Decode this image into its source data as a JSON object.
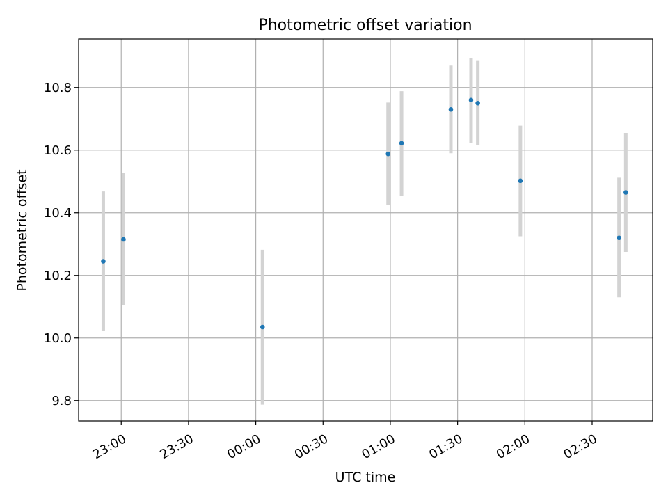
{
  "chart_data": {
    "type": "scatter",
    "title": "Photometric offset variation",
    "xlabel": "UTC time",
    "ylabel": "Photometric offset",
    "x_tick_labels": [
      "23:00",
      "23:30",
      "00:00",
      "00:30",
      "01:00",
      "01:30",
      "02:00",
      "02:30"
    ],
    "x_tick_times": [
      "2000-01-01T23:00",
      "2000-01-01T23:30",
      "2000-01-02T00:00",
      "2000-01-02T00:30",
      "2000-01-02T01:00",
      "2000-01-02T01:30",
      "2000-01-02T02:00",
      "2000-01-02T02:30"
    ],
    "xlim": [
      "2000-01-01T22:41",
      "2000-01-02T02:57"
    ],
    "ylim": [
      9.735,
      10.955
    ],
    "y_ticks": [
      9.8,
      10.0,
      10.2,
      10.4,
      10.6,
      10.8
    ],
    "y_tick_labels": [
      "9.8",
      "10.0",
      "10.2",
      "10.4",
      "10.6",
      "10.8"
    ],
    "grid": true,
    "colors": {
      "marker": "#1f77b4",
      "errorbar": "#d3d3d3",
      "grid": "#b0b0b0",
      "axes": "#000000"
    },
    "points": [
      {
        "x": "2000-01-01T22:52",
        "y": 10.245,
        "err_low": 10.022,
        "err_high": 10.468
      },
      {
        "x": "2000-01-01T23:01",
        "y": 10.315,
        "err_low": 10.105,
        "err_high": 10.527
      },
      {
        "x": "2000-01-02T00:03",
        "y": 10.035,
        "err_low": 9.787,
        "err_high": 10.282
      },
      {
        "x": "2000-01-02T00:59",
        "y": 10.588,
        "err_low": 10.425,
        "err_high": 10.752
      },
      {
        "x": "2000-01-02T01:05",
        "y": 10.622,
        "err_low": 10.455,
        "err_high": 10.788
      },
      {
        "x": "2000-01-02T01:27",
        "y": 10.73,
        "err_low": 10.59,
        "err_high": 10.87
      },
      {
        "x": "2000-01-02T01:36",
        "y": 10.76,
        "err_low": 10.623,
        "err_high": 10.895
      },
      {
        "x": "2000-01-02T01:39",
        "y": 10.75,
        "err_low": 10.615,
        "err_high": 10.887
      },
      {
        "x": "2000-01-02T01:58",
        "y": 10.502,
        "err_low": 10.325,
        "err_high": 10.678
      },
      {
        "x": "2000-01-02T02:42",
        "y": 10.32,
        "err_low": 10.13,
        "err_high": 10.512
      },
      {
        "x": "2000-01-02T02:45",
        "y": 10.465,
        "err_low": 10.275,
        "err_high": 10.655
      }
    ]
  }
}
